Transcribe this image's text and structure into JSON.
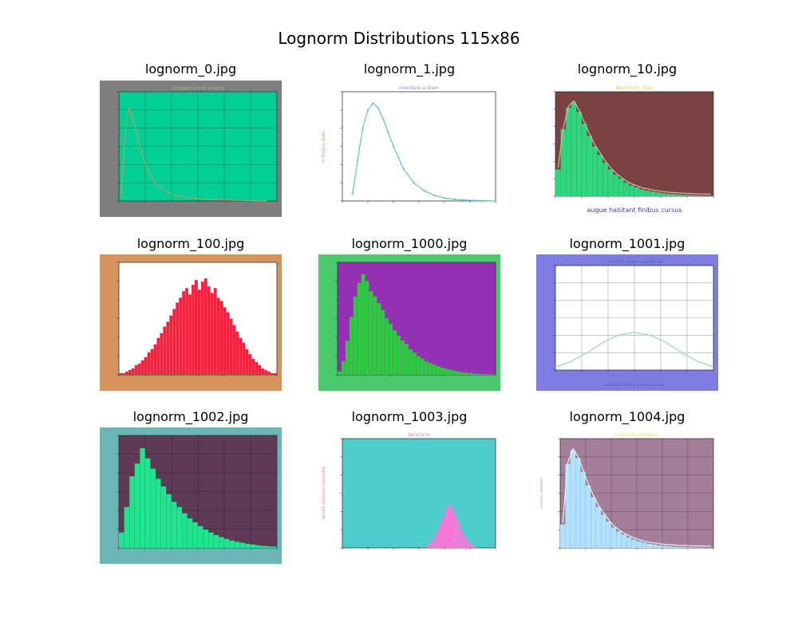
{
  "figure": {
    "title": "Lognorm Distributions 115x86"
  },
  "chart_data": [
    {
      "file": "lognorm_0.jpg",
      "type": "line",
      "title": "congue cursus viverra",
      "colors": {
        "bg": "#7f7f7f",
        "plot": "#00cf95",
        "line": "#9aa86a",
        "title": "#a9bb7c"
      },
      "grid": true,
      "x": [
        0.05,
        0.1,
        0.15,
        0.2,
        0.25,
        0.3,
        0.4,
        0.5,
        0.6,
        0.7,
        0.8,
        1.0,
        1.2,
        1.5,
        1.8,
        2.2,
        2.6,
        3.0
      ],
      "y": [
        0.1,
        1.1,
        1.9,
        2.2,
        2.1,
        1.9,
        1.4,
        1.0,
        0.7,
        0.5,
        0.35,
        0.2,
        0.12,
        0.07,
        0.04,
        0.02,
        0.01,
        0.0
      ],
      "xlim": [
        0,
        3.2
      ],
      "ylim": [
        0,
        2.6
      ]
    },
    {
      "file": "lognorm_1.jpg",
      "type": "line",
      "title": "interdum a diam",
      "ylabel": "in finibus dolor",
      "colors": {
        "bg": "#ffffff",
        "plot": "#ffffff",
        "line": "#6fc2c2",
        "title": "#9b86c6",
        "ylabel": "#7ac66f"
      },
      "grid": false,
      "markers": true,
      "x": [
        0.1,
        0.15,
        0.2,
        0.25,
        0.3,
        0.35,
        0.4,
        0.45,
        0.5,
        0.55,
        0.6,
        0.7,
        0.8,
        0.9,
        1.0,
        1.1,
        1.2,
        1.3,
        1.4,
        1.5
      ],
      "y": [
        0.3,
        1.8,
        3.2,
        4.0,
        4.3,
        4.1,
        3.6,
        3.0,
        2.4,
        1.9,
        1.4,
        0.8,
        0.45,
        0.25,
        0.13,
        0.07,
        0.04,
        0.02,
        0.01,
        0.0
      ],
      "xlim": [
        0,
        1.5
      ],
      "ylim": [
        0,
        4.8
      ]
    },
    {
      "file": "lognorm_10.jpg",
      "type": "bar",
      "title": "bibendum vitae",
      "xlabel": "augue habitant finibus cursus",
      "colors": {
        "bg": "#ffffff",
        "plot": "#7a4341",
        "bar": "#2ed67f",
        "line": "#d7b7a8",
        "title": "#c8d654",
        "xlabel": "#4e3ab0"
      },
      "grid": false,
      "overlay_line": true,
      "values": [
        2.0,
        5.0,
        6.6,
        7.0,
        6.3,
        5.4,
        4.5,
        3.7,
        3.1,
        2.5,
        2.0,
        1.6,
        1.3,
        1.0,
        0.8,
        0.65,
        0.5,
        0.42,
        0.34,
        0.28,
        0.22,
        0.18,
        0.15,
        0.12,
        0.1,
        0.08,
        0.06,
        0.05,
        0.04,
        0.03
      ],
      "ylim": [
        0,
        7.8
      ]
    },
    {
      "file": "lognorm_100.jpg",
      "type": "bar",
      "colors": {
        "bg": "#d4945b",
        "plot": "#ffffff",
        "bar": "#f8203e"
      },
      "grid": false,
      "values": [
        0.1,
        0.1,
        0.2,
        0.3,
        0.4,
        0.6,
        0.7,
        0.9,
        1.1,
        1.4,
        1.6,
        1.9,
        2.3,
        2.6,
        3.0,
        3.3,
        3.7,
        4.1,
        4.5,
        4.8,
        5.2,
        5.4,
        5.0,
        5.6,
        5.9,
        5.3,
        5.8,
        6.0,
        5.5,
        5.1,
        5.4,
        4.8,
        4.6,
        4.2,
        3.9,
        3.5,
        3.1,
        2.7,
        2.3,
        2.0,
        1.6,
        1.3,
        1.0,
        0.8,
        0.6,
        0.4,
        0.3,
        0.2,
        0.1,
        0.1
      ],
      "ylim": [
        0,
        7
      ]
    },
    {
      "file": "lognorm_1000.jpg",
      "type": "bar",
      "colors": {
        "bg": "#49c86e",
        "plot": "#9431b2",
        "bar": "#2ec940"
      },
      "grid": false,
      "values": [
        0.2,
        0.8,
        2.0,
        3.4,
        4.6,
        5.4,
        5.9,
        5.5,
        4.9,
        4.6,
        4.2,
        3.8,
        3.3,
        3.0,
        2.6,
        2.3,
        2.0,
        1.8,
        1.5,
        1.3,
        1.1,
        0.95,
        0.8,
        0.7,
        0.6,
        0.5,
        0.42,
        0.36,
        0.3,
        0.25,
        0.2,
        0.16,
        0.13,
        0.1,
        0.08,
        0.06,
        0.05,
        0.04,
        0.03,
        0.02
      ],
      "ylim": [
        0,
        6.6
      ]
    },
    {
      "file": "lognorm_1001.jpg",
      "type": "line",
      "title": "suscipit lorem sapien at",
      "xlabel": "suscipit lorem cursus alnea",
      "colors": {
        "bg": "#7d7ce1",
        "plot": "#ffffff",
        "line": "#a6d2d6",
        "title": "#5a5fd0",
        "xlabel": "#5a5fd0"
      },
      "grid": true,
      "x": [
        0.0,
        0.1,
        0.2,
        0.3,
        0.4,
        0.5,
        0.6,
        0.7,
        0.8,
        0.9,
        1.0
      ],
      "y": [
        0.1,
        0.3,
        0.6,
        0.95,
        1.2,
        1.3,
        1.2,
        0.95,
        0.6,
        0.3,
        0.1
      ],
      "xlim": [
        0,
        1.0
      ],
      "ylim": [
        0,
        3.6
      ]
    },
    {
      "file": "lognorm_1002.jpg",
      "type": "bar",
      "colors": {
        "bg": "#6ab6b6",
        "plot": "#5e3a54",
        "bar": "#1fe58f",
        "ylabel": "#9aa33a"
      },
      "grid": true,
      "values": [
        0.6,
        1.6,
        2.8,
        3.3,
        3.9,
        3.5,
        3.1,
        2.7,
        2.4,
        2.1,
        1.8,
        1.6,
        1.35,
        1.15,
        1.0,
        0.85,
        0.72,
        0.6,
        0.5,
        0.42,
        0.35,
        0.29,
        0.24,
        0.2,
        0.16,
        0.13,
        0.1,
        0.08,
        0.06,
        0.05
      ],
      "ylim": [
        0,
        4.4
      ]
    },
    {
      "file": "lognorm_1003.jpg",
      "type": "bar",
      "title": "lacinia in",
      "ylabel": "iaculis ultricies convallis",
      "colors": {
        "bg": "#ffffff",
        "plot": "#4fcdcd",
        "bar": "#f77ad8",
        "title": "#c67ab6",
        "ylabel": "#e07ab0"
      },
      "grid": false,
      "range_start": 0.55,
      "values": [
        0.2,
        0.4,
        0.7,
        1.1,
        1.6,
        2.1,
        2.6,
        3.0,
        2.7,
        2.2,
        1.7,
        1.2,
        0.8,
        0.5,
        0.3,
        0.15
      ],
      "ylim": [
        0,
        7.6
      ]
    },
    {
      "file": "lognorm_1004.jpg",
      "type": "bar",
      "title": "vulputate tristique",
      "ylabel": "cursus sodales",
      "colors": {
        "bg": "#ffffff",
        "plot": "#a57f9a",
        "bar": "#aee2ff",
        "line": "#e8f0f6",
        "title": "#cfe66a",
        "ylabel": "#9cb7c7"
      },
      "grid": true,
      "overlay_line": true,
      "values": [
        1.2,
        4.3,
        5.0,
        4.6,
        3.9,
        3.2,
        2.6,
        2.1,
        1.7,
        1.35,
        1.05,
        0.85,
        0.68,
        0.54,
        0.43,
        0.34,
        0.27,
        0.21,
        0.17,
        0.13,
        0.1,
        0.08,
        0.06,
        0.05,
        0.04,
        0.03,
        0.02,
        0.02,
        0.01,
        0.01
      ],
      "ylim": [
        0,
        5.6
      ]
    }
  ]
}
